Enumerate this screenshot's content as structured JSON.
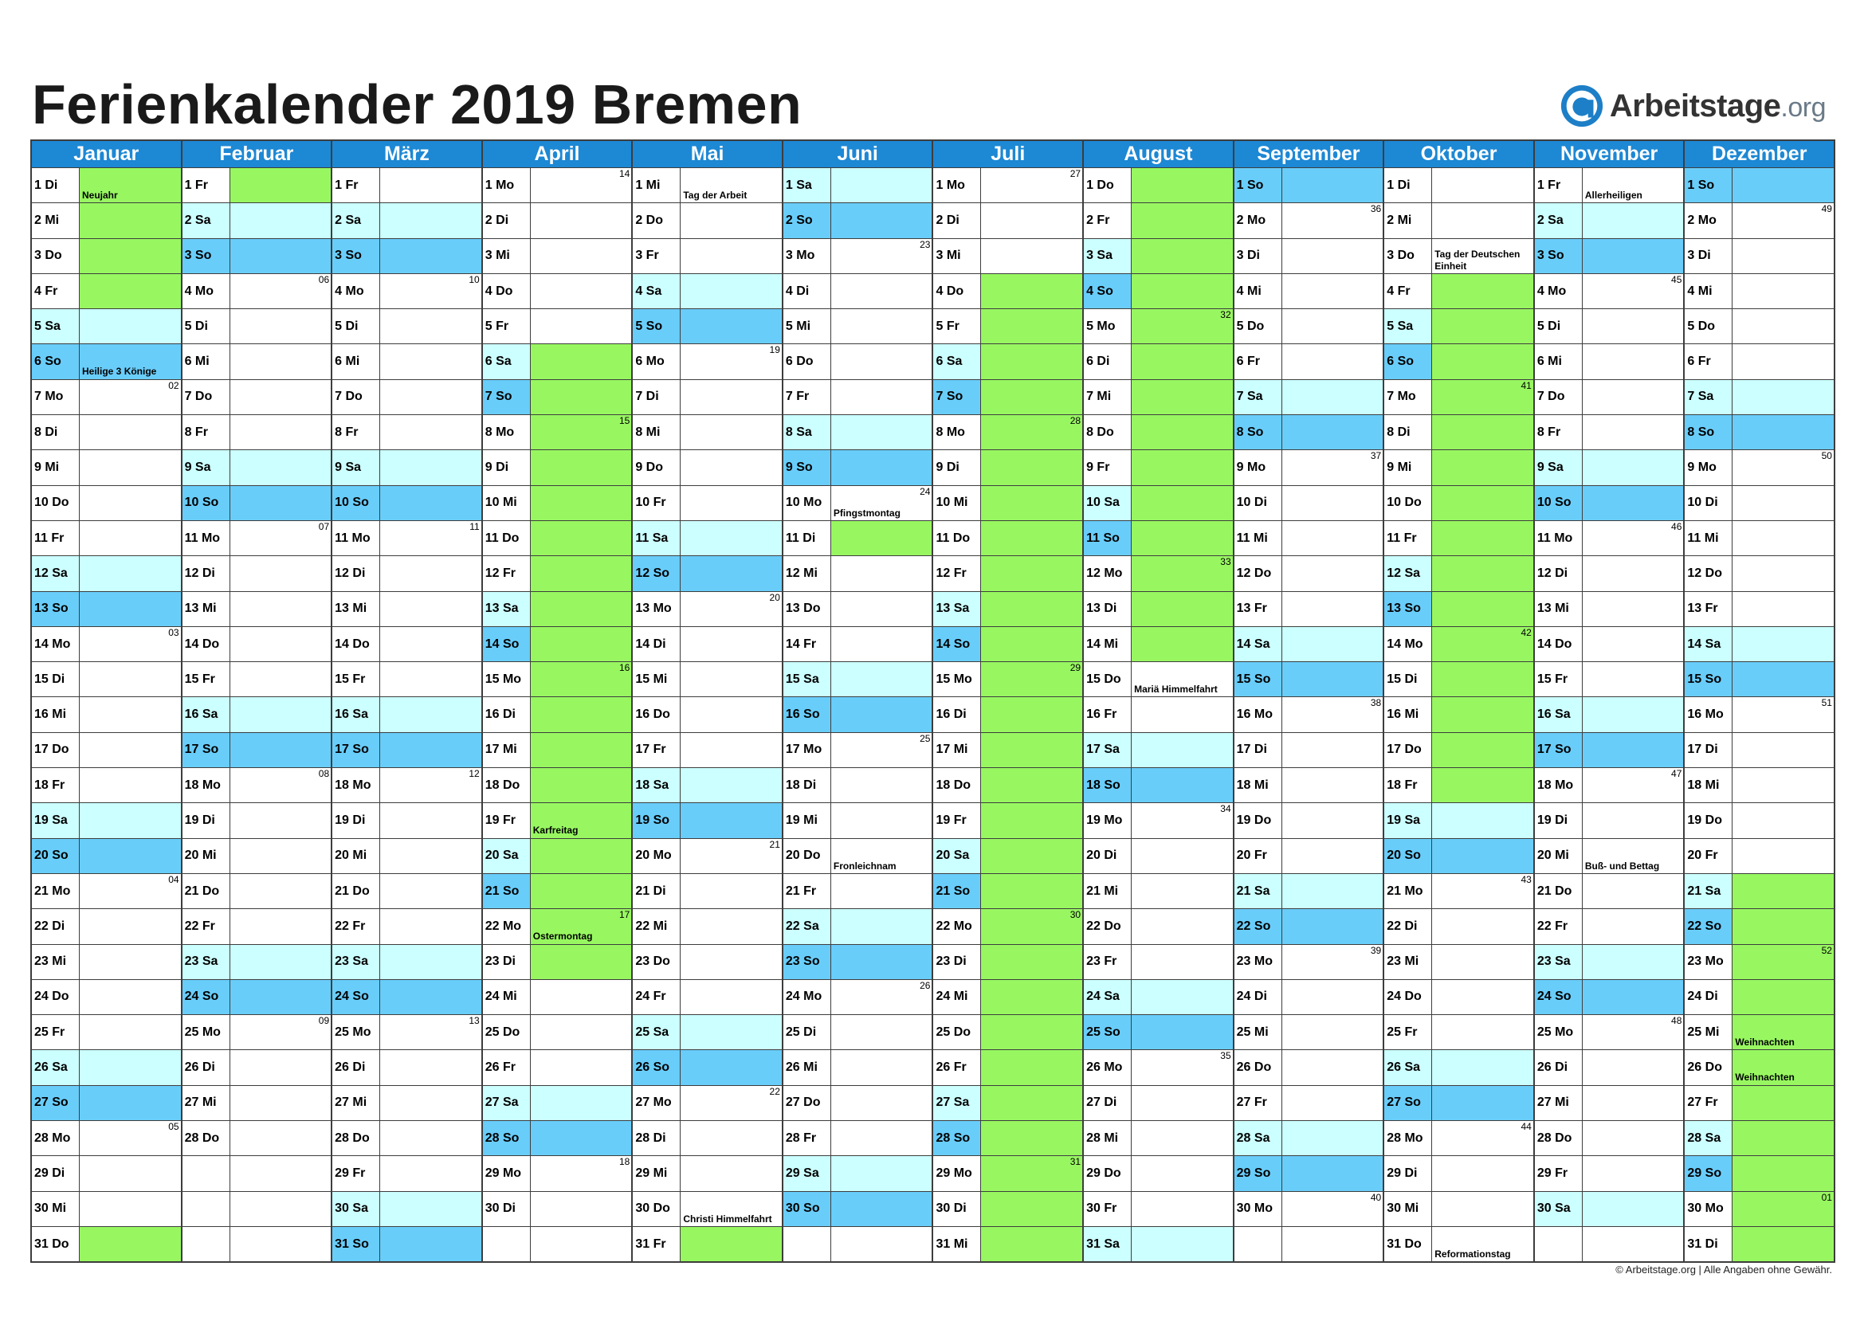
{
  "title": "Ferienkalender 2019 Bremen",
  "logo": {
    "brand": "Arbeitstage",
    "domain": ".org",
    "icon": "arbeitstage-a-logo-icon"
  },
  "footer": "© Arbeitstage.org | Alle Angaben ohne Gewähr.",
  "colors": {
    "header": "#1d88d4",
    "sunday": "#69cdfa",
    "saturday": "#ccffff",
    "ferien": "#98f761",
    "holiday": "#98f761"
  },
  "months": [
    {
      "name": "Januar",
      "days": [
        "1 Di",
        "2 Mi",
        "3 Do",
        "4 Fr",
        "5 Sa",
        "6 So",
        "7 Mo",
        "8 Di",
        "9 Mi",
        "10 Do",
        "11 Fr",
        "12 Sa",
        "13 So",
        "14 Mo",
        "15 Di",
        "16 Mi",
        "17 Do",
        "18 Fr",
        "19 Sa",
        "20 So",
        "21 Mo",
        "22 Di",
        "23 Mi",
        "24 Do",
        "25 Fr",
        "26 Sa",
        "27 So",
        "28 Mo",
        "29 Di",
        "30 Mi",
        "31 Do"
      ],
      "ferien": [
        1,
        2,
        3,
        4,
        31
      ],
      "holidays": {
        "1": "Neujahr",
        "6": "Heilige 3 Könige"
      },
      "weeks": {
        "7": "02",
        "14": "03",
        "21": "04",
        "28": "05"
      }
    },
    {
      "name": "Februar",
      "days": [
        "1 Fr",
        "2 Sa",
        "3 So",
        "4 Mo",
        "5 Di",
        "6 Mi",
        "7 Do",
        "8 Fr",
        "9 Sa",
        "10 So",
        "11 Mo",
        "12 Di",
        "13 Mi",
        "14 Do",
        "15 Fr",
        "16 Sa",
        "17 So",
        "18 Mo",
        "19 Di",
        "20 Mi",
        "21 Do",
        "22 Fr",
        "23 Sa",
        "24 So",
        "25 Mo",
        "26 Di",
        "27 Mi",
        "28 Do",
        "",
        "",
        ""
      ],
      "ferien": [
        1
      ],
      "holidays": {},
      "weeks": {
        "4": "06",
        "11": "07",
        "18": "08",
        "25": "09"
      }
    },
    {
      "name": "März",
      "days": [
        "1 Fr",
        "2 Sa",
        "3 So",
        "4 Mo",
        "5 Di",
        "6 Mi",
        "7 Do",
        "8 Fr",
        "9 Sa",
        "10 So",
        "11 Mo",
        "12 Di",
        "13 Mi",
        "14 Do",
        "15 Fr",
        "16 Sa",
        "17 So",
        "18 Mo",
        "19 Di",
        "20 Mi",
        "21 Do",
        "22 Fr",
        "23 Sa",
        "24 So",
        "25 Mo",
        "26 Di",
        "27 Mi",
        "28 Do",
        "29 Fr",
        "30 Sa",
        "31 So"
      ],
      "ferien": [],
      "holidays": {},
      "weeks": {
        "4": "10",
        "11": "11",
        "18": "12",
        "25": "13"
      }
    },
    {
      "name": "April",
      "days": [
        "1 Mo",
        "2 Di",
        "3 Mi",
        "4 Do",
        "5 Fr",
        "6 Sa",
        "7 So",
        "8 Mo",
        "9 Di",
        "10 Mi",
        "11 Do",
        "12 Fr",
        "13 Sa",
        "14 So",
        "15 Mo",
        "16 Di",
        "17 Mi",
        "18 Do",
        "19 Fr",
        "20 Sa",
        "21 So",
        "22 Mo",
        "23 Di",
        "24 Mi",
        "25 Do",
        "26 Fr",
        "27 Sa",
        "28 So",
        "29 Mo",
        "30 Di",
        ""
      ],
      "ferien": [
        6,
        7,
        8,
        9,
        10,
        11,
        12,
        13,
        14,
        15,
        16,
        17,
        18,
        19,
        20,
        21,
        22,
        23
      ],
      "holidays": {
        "19": "Karfreitag",
        "22": "Ostermontag"
      },
      "weeks": {
        "1": "14",
        "8": "15",
        "15": "16",
        "22": "17",
        "29": "18"
      }
    },
    {
      "name": "Mai",
      "days": [
        "1 Mi",
        "2 Do",
        "3 Fr",
        "4 Sa",
        "5 So",
        "6 Mo",
        "7 Di",
        "8 Mi",
        "9 Do",
        "10 Fr",
        "11 Sa",
        "12 So",
        "13 Mo",
        "14 Di",
        "15 Mi",
        "16 Do",
        "17 Fr",
        "18 Sa",
        "19 So",
        "20 Mo",
        "21 Di",
        "22 Mi",
        "23 Do",
        "24 Fr",
        "25 Sa",
        "26 So",
        "27 Mo",
        "28 Di",
        "29 Mi",
        "30 Do",
        "31 Fr"
      ],
      "ferien": [
        31
      ],
      "holidays": {
        "1": "Tag der Arbeit",
        "30": "Christi Himmelfahrt"
      },
      "weeks": {
        "6": "19",
        "13": "20",
        "20": "21",
        "27": "22"
      }
    },
    {
      "name": "Juni",
      "days": [
        "1 Sa",
        "2 So",
        "3 Mo",
        "4 Di",
        "5 Mi",
        "6 Do",
        "7 Fr",
        "8 Sa",
        "9 So",
        "10 Mo",
        "11 Di",
        "12 Mi",
        "13 Do",
        "14 Fr",
        "15 Sa",
        "16 So",
        "17 Mo",
        "18 Di",
        "19 Mi",
        "20 Do",
        "21 Fr",
        "22 Sa",
        "23 So",
        "24 Mo",
        "25 Di",
        "26 Mi",
        "27 Do",
        "28 Fr",
        "29 Sa",
        "30 So",
        ""
      ],
      "ferien": [
        11
      ],
      "holidays": {
        "10": "Pfingstmontag",
        "20": "Fronleichnam"
      },
      "weeks": {
        "3": "23",
        "10": "24",
        "17": "25",
        "24": "26"
      }
    },
    {
      "name": "Juli",
      "days": [
        "1 Mo",
        "2 Di",
        "3 Mi",
        "4 Do",
        "5 Fr",
        "6 Sa",
        "7 So",
        "8 Mo",
        "9 Di",
        "10 Mi",
        "11 Do",
        "12 Fr",
        "13 Sa",
        "14 So",
        "15 Mo",
        "16 Di",
        "17 Mi",
        "18 Do",
        "19 Fr",
        "20 Sa",
        "21 So",
        "22 Mo",
        "23 Di",
        "24 Mi",
        "25 Do",
        "26 Fr",
        "27 Sa",
        "28 So",
        "29 Mo",
        "30 Di",
        "31 Mi"
      ],
      "ferien": [
        4,
        5,
        6,
        7,
        8,
        9,
        10,
        11,
        12,
        13,
        14,
        15,
        16,
        17,
        18,
        19,
        20,
        21,
        22,
        23,
        24,
        25,
        26,
        27,
        28,
        29,
        30,
        31
      ],
      "holidays": {},
      "weeks": {
        "1": "27",
        "8": "28",
        "15": "29",
        "22": "30",
        "29": "31"
      }
    },
    {
      "name": "August",
      "days": [
        "1 Do",
        "2 Fr",
        "3 Sa",
        "4 So",
        "5 Mo",
        "6 Di",
        "7 Mi",
        "8 Do",
        "9 Fr",
        "10 Sa",
        "11 So",
        "12 Mo",
        "13 Di",
        "14 Mi",
        "15 Do",
        "16 Fr",
        "17 Sa",
        "18 So",
        "19 Mo",
        "20 Di",
        "21 Mi",
        "22 Do",
        "23 Fr",
        "24 Sa",
        "25 So",
        "26 Mo",
        "27 Di",
        "28 Mi",
        "29 Do",
        "30 Fr",
        "31 Sa"
      ],
      "ferien": [
        1,
        2,
        3,
        4,
        5,
        6,
        7,
        8,
        9,
        10,
        11,
        12,
        13,
        14
      ],
      "holidays": {
        "15": "Mariä Himmelfahrt"
      },
      "weeks": {
        "5": "32",
        "12": "33",
        "19": "34",
        "26": "35"
      }
    },
    {
      "name": "September",
      "days": [
        "1 So",
        "2 Mo",
        "3 Di",
        "4 Mi",
        "5 Do",
        "6 Fr",
        "7 Sa",
        "8 So",
        "9 Mo",
        "10 Di",
        "11 Mi",
        "12 Do",
        "13 Fr",
        "14 Sa",
        "15 So",
        "16 Mo",
        "17 Di",
        "18 Mi",
        "19 Do",
        "20 Fr",
        "21 Sa",
        "22 So",
        "23 Mo",
        "24 Di",
        "25 Mi",
        "26 Do",
        "27 Fr",
        "28 Sa",
        "29 So",
        "30 Mo",
        ""
      ],
      "ferien": [],
      "holidays": {},
      "weeks": {
        "2": "36",
        "9": "37",
        "16": "38",
        "23": "39",
        "30": "40"
      }
    },
    {
      "name": "Oktober",
      "days": [
        "1 Di",
        "2 Mi",
        "3 Do",
        "4 Fr",
        "5 Sa",
        "6 So",
        "7 Mo",
        "8 Di",
        "9 Mi",
        "10 Do",
        "11 Fr",
        "12 Sa",
        "13 So",
        "14 Mo",
        "15 Di",
        "16 Mi",
        "17 Do",
        "18 Fr",
        "19 Sa",
        "20 So",
        "21 Mo",
        "22 Di",
        "23 Mi",
        "24 Do",
        "25 Fr",
        "26 Sa",
        "27 So",
        "28 Mo",
        "29 Di",
        "30 Mi",
        "31 Do"
      ],
      "ferien": [
        4,
        5,
        6,
        7,
        8,
        9,
        10,
        11,
        12,
        13,
        14,
        15,
        16,
        17,
        18
      ],
      "holidays": {
        "3": "Tag der Deutschen Einheit",
        "31": "Reformationstag"
      },
      "weeks": {
        "7": "41",
        "14": "42",
        "21": "43",
        "28": "44"
      }
    },
    {
      "name": "November",
      "days": [
        "1 Fr",
        "2 Sa",
        "3 So",
        "4 Mo",
        "5 Di",
        "6 Mi",
        "7 Do",
        "8 Fr",
        "9 Sa",
        "10 So",
        "11 Mo",
        "12 Di",
        "13 Mi",
        "14 Do",
        "15 Fr",
        "16 Sa",
        "17 So",
        "18 Mo",
        "19 Di",
        "20 Mi",
        "21 Do",
        "22 Fr",
        "23 Sa",
        "24 So",
        "25 Mo",
        "26 Di",
        "27 Mi",
        "28 Do",
        "29 Fr",
        "30 Sa",
        ""
      ],
      "ferien": [],
      "holidays": {
        "1": "Allerheiligen",
        "20": "Buß- und Bettag"
      },
      "weeks": {
        "4": "45",
        "11": "46",
        "18": "47",
        "25": "48"
      }
    },
    {
      "name": "Dezember",
      "days": [
        "1 So",
        "2 Mo",
        "3 Di",
        "4 Mi",
        "5 Do",
        "6 Fr",
        "7 Sa",
        "8 So",
        "9 Mo",
        "10 Di",
        "11 Mi",
        "12 Do",
        "13 Fr",
        "14 Sa",
        "15 So",
        "16 Mo",
        "17 Di",
        "18 Mi",
        "19 Do",
        "20 Fr",
        "21 Sa",
        "22 So",
        "23 Mo",
        "24 Di",
        "25 Mi",
        "26 Do",
        "27 Fr",
        "28 Sa",
        "29 So",
        "30 Mo",
        "31 Di"
      ],
      "ferien": [
        21,
        22,
        23,
        24,
        25,
        26,
        27,
        28,
        29,
        30,
        31
      ],
      "holidays": {
        "25": "Weihnachten",
        "26": "Weihnachten"
      },
      "weeks": {
        "2": "49",
        "9": "50",
        "16": "51",
        "23": "52",
        "30": "01"
      }
    }
  ]
}
